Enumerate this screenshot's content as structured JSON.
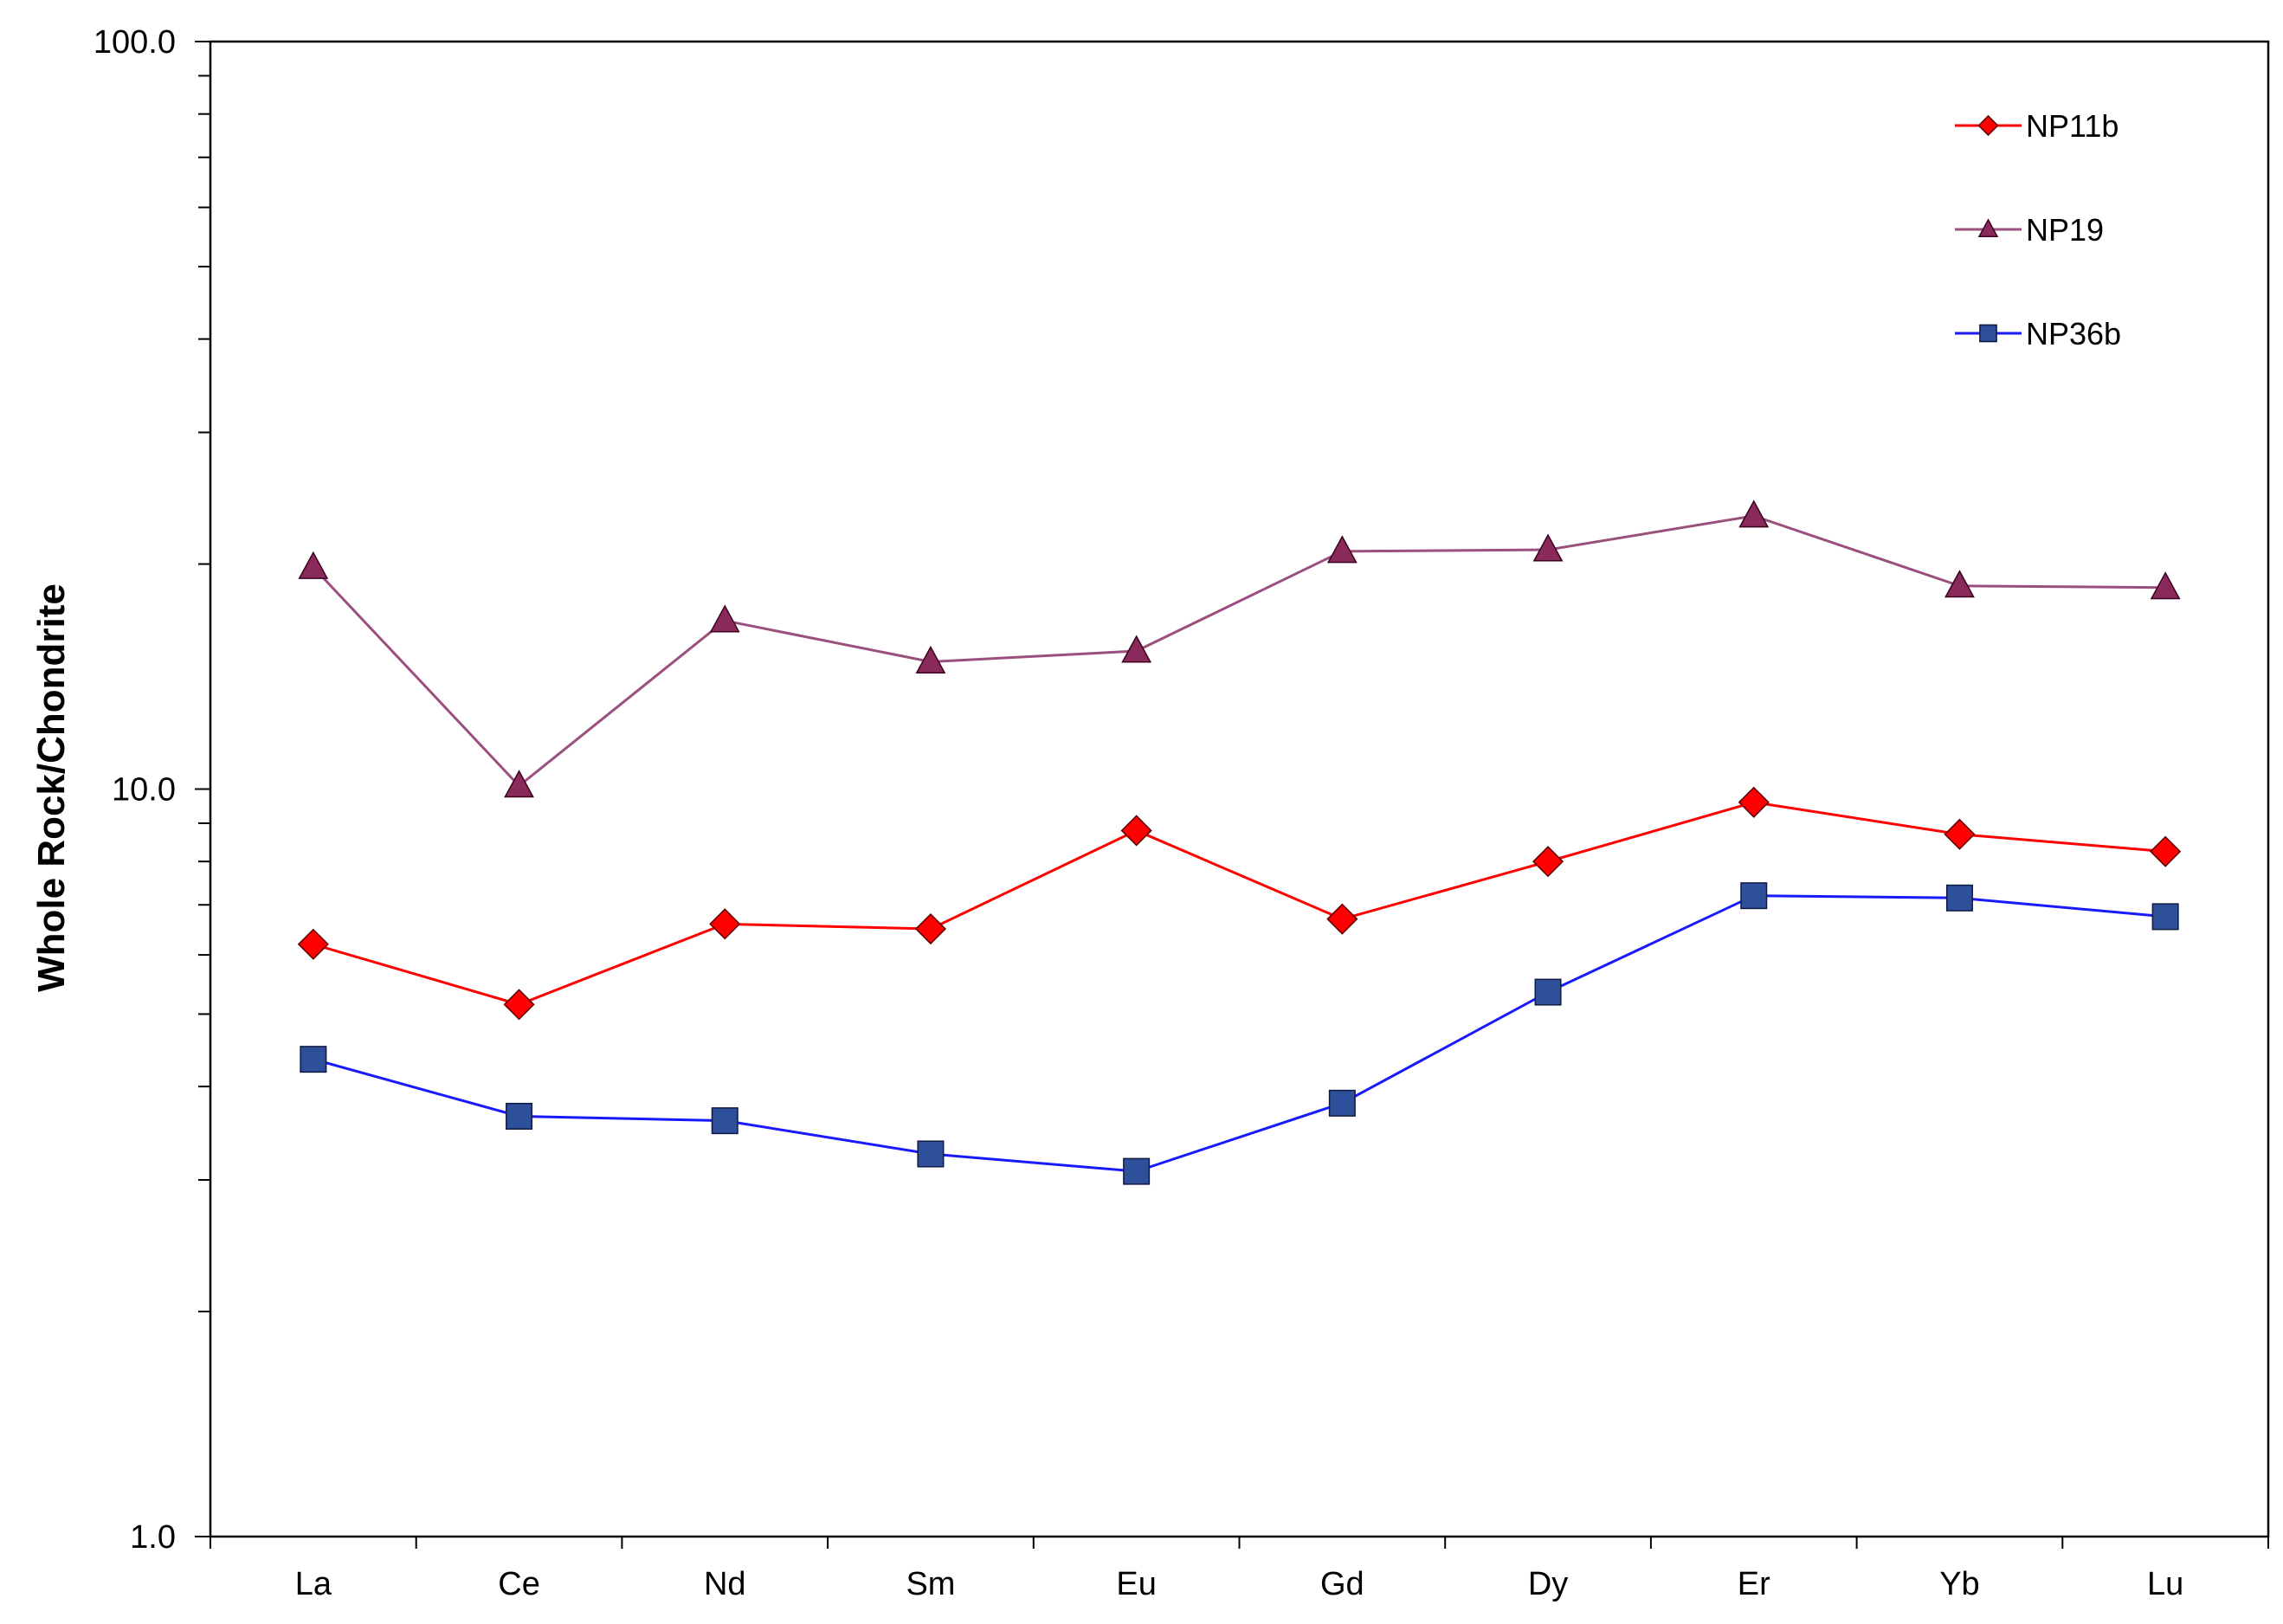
{
  "chart_data": {
    "type": "line",
    "title": "",
    "xlabel": "",
    "ylabel": "Whole Rock/Chondrite",
    "yscale": "log",
    "ylim": [
      1.0,
      100.0
    ],
    "yticks": [
      "1.0",
      "10.0",
      "100.0"
    ],
    "grid": false,
    "legend_position": "top-right",
    "categories": [
      "La",
      "Ce",
      "Nd",
      "Sm",
      "Eu",
      "Gd",
      "Dy",
      "Er",
      "Yb",
      "Lu"
    ],
    "series": [
      {
        "name": "NP11b",
        "marker": "diamond",
        "color": "#ff0000",
        "marker_color": "#ff0000",
        "values": [
          6.2,
          5.15,
          6.6,
          6.5,
          8.8,
          6.7,
          8.0,
          9.6,
          8.7,
          8.25
        ]
      },
      {
        "name": "NP19",
        "marker": "triangle",
        "color": "#9b4f7e",
        "marker_color": "#8a2a5a",
        "values": [
          19.8,
          10.1,
          16.8,
          14.8,
          15.3,
          20.8,
          20.9,
          23.2,
          18.7,
          18.6
        ]
      },
      {
        "name": "NP36b",
        "marker": "square",
        "color": "#1a1aff",
        "marker_color": "#2e4f99",
        "values": [
          4.35,
          3.65,
          3.6,
          3.25,
          3.08,
          3.8,
          5.35,
          7.2,
          7.15,
          6.75
        ]
      }
    ]
  }
}
